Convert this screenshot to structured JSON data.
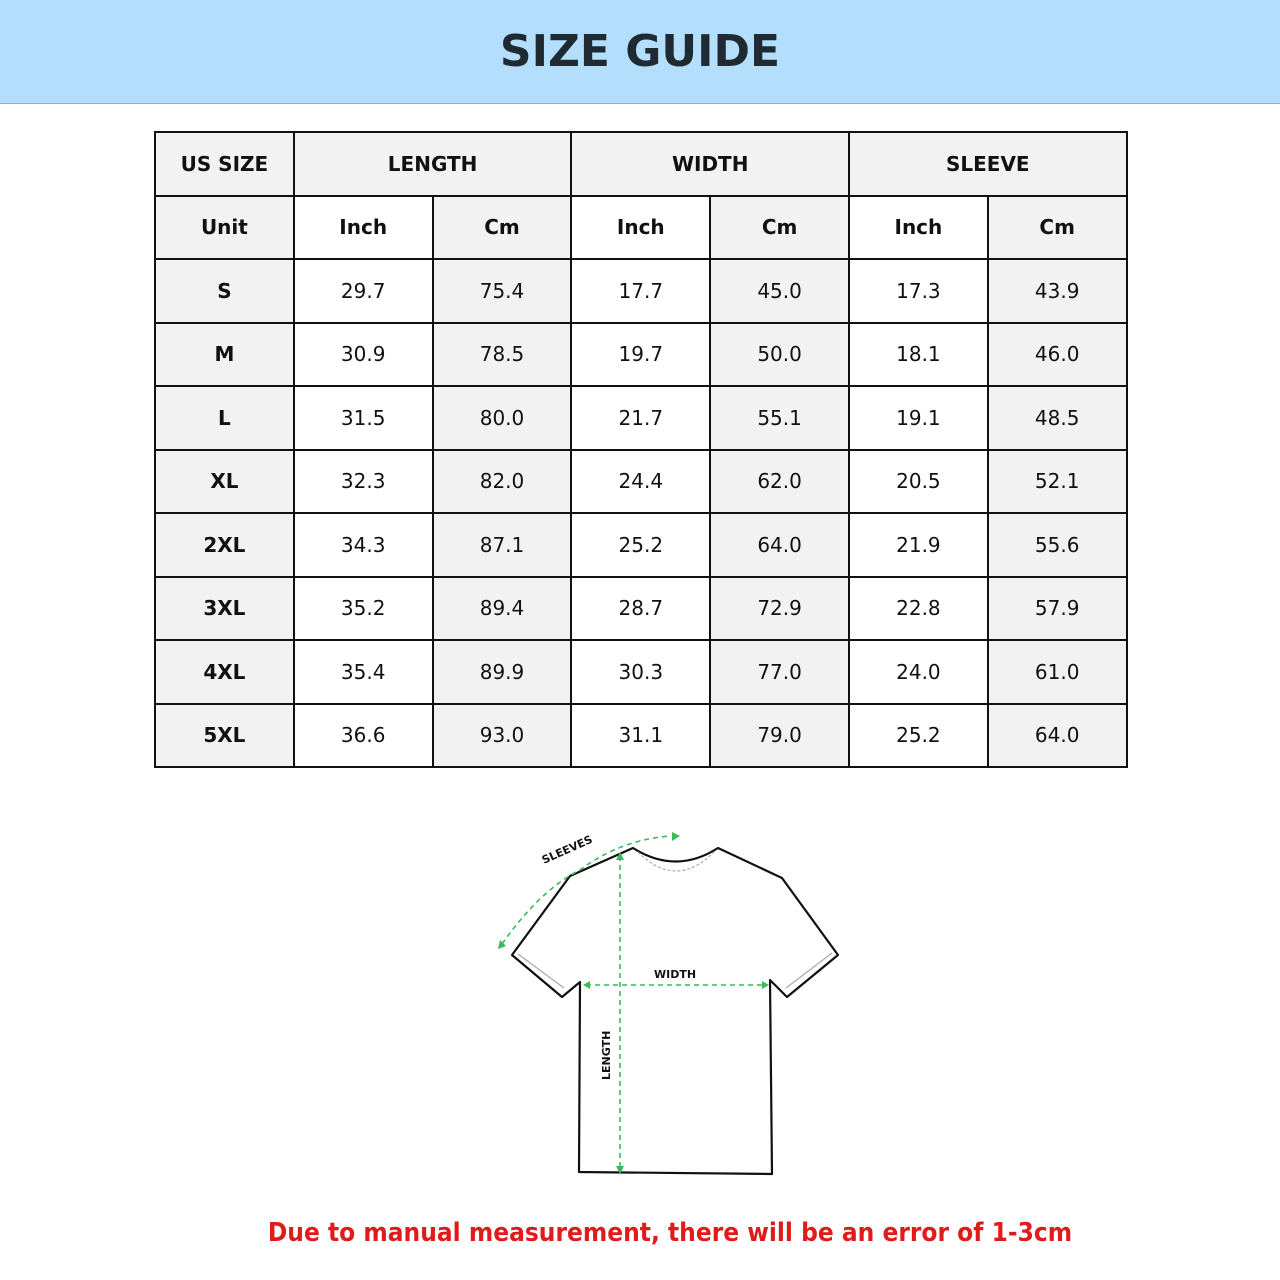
{
  "title": "SIZE GUIDE",
  "table": {
    "group_headers": [
      "US SIZE",
      "LENGTH",
      "WIDTH",
      "SLEEVE"
    ],
    "unit_row": [
      "Unit",
      "Inch",
      "Cm",
      "Inch",
      "Cm",
      "Inch",
      "Cm"
    ],
    "rows": [
      [
        "S",
        "29.7",
        "75.4",
        "17.7",
        "45.0",
        "17.3",
        "43.9"
      ],
      [
        "M",
        "30.9",
        "78.5",
        "19.7",
        "50.0",
        "18.1",
        "46.0"
      ],
      [
        "L",
        "31.5",
        "80.0",
        "21.7",
        "55.1",
        "19.1",
        "48.5"
      ],
      [
        "XL",
        "32.3",
        "82.0",
        "24.4",
        "62.0",
        "20.5",
        "52.1"
      ],
      [
        "2XL",
        "34.3",
        "87.1",
        "25.2",
        "64.0",
        "21.9",
        "55.6"
      ],
      [
        "3XL",
        "35.2",
        "89.4",
        "28.7",
        "72.9",
        "22.8",
        "57.9"
      ],
      [
        "4XL",
        "35.4",
        "89.9",
        "30.3",
        "77.0",
        "24.0",
        "61.0"
      ],
      [
        "5XL",
        "36.6",
        "93.0",
        "31.1",
        "79.0",
        "25.2",
        "64.0"
      ]
    ]
  },
  "diagram": {
    "labels": {
      "sleeves": "SLEEVES",
      "width": "WIDTH",
      "length": "LENGTH"
    },
    "measure_color": "#3cb95a"
  },
  "note": "Due to manual measurement, there will be an error of 1-3cm",
  "colors": {
    "banner": "#b3defc",
    "note": "#e01b1b"
  }
}
